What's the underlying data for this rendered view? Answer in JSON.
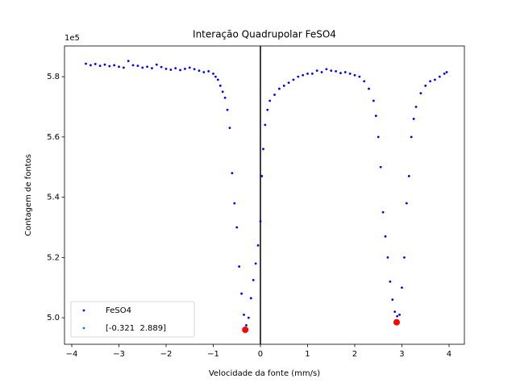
{
  "chart_data": {
    "type": "scatter",
    "title": "Interação Quadrupolar FeSO4",
    "xlabel": "Velocidade da fonte (mm/s)",
    "ylabel": "Contagem de fontos",
    "y_offset_label": "1e5",
    "xlim": [
      -4.154,
      4.325
    ],
    "ylim": [
      4.912,
      5.902
    ],
    "xticks": [
      {
        "value": -4,
        "label": "−4"
      },
      {
        "value": -3,
        "label": "−3"
      },
      {
        "value": -2,
        "label": "−2"
      },
      {
        "value": -1,
        "label": "−1"
      },
      0,
      1,
      2,
      3,
      4
    ],
    "yticks": [
      {
        "value": 5,
        "label": "5.0"
      },
      5.2,
      5.4,
      5.6,
      5.8
    ],
    "vline": 0,
    "legend": "lower left",
    "series": [
      {
        "name": "FeSO4",
        "color": "#0000ff",
        "marker_radius": 1.4,
        "x": [
          -3.7,
          -3.6,
          -3.5,
          -3.4,
          -3.3,
          -3.2,
          -3.1,
          -3.0,
          -2.9,
          -2.8,
          -2.7,
          -2.6,
          -2.5,
          -2.4,
          -2.3,
          -2.2,
          -2.1,
          -2.0,
          -1.9,
          -1.8,
          -1.7,
          -1.6,
          -1.5,
          -1.4,
          -1.3,
          -1.2,
          -1.1,
          -1.0,
          -0.95,
          -0.9,
          -0.85,
          -0.8,
          -0.75,
          -0.7,
          -0.65,
          -0.6,
          -0.55,
          -0.5,
          -0.45,
          -0.4,
          -0.35,
          -0.3,
          -0.25,
          -0.2,
          -0.15,
          -0.1,
          -0.05,
          0.0,
          0.03,
          0.06,
          0.1,
          0.15,
          0.2,
          0.3,
          0.4,
          0.5,
          0.6,
          0.7,
          0.8,
          0.9,
          1.0,
          1.1,
          1.2,
          1.3,
          1.4,
          1.5,
          1.6,
          1.7,
          1.8,
          1.9,
          2.0,
          2.1,
          2.2,
          2.3,
          2.4,
          2.45,
          2.5,
          2.55,
          2.6,
          2.65,
          2.7,
          2.75,
          2.8,
          2.85,
          2.9,
          2.95,
          3.0,
          3.05,
          3.1,
          3.15,
          3.2,
          3.25,
          3.3,
          3.4,
          3.5,
          3.6,
          3.7,
          3.8,
          3.9,
          3.95
        ],
        "values": [
          5.843,
          5.838,
          5.842,
          5.836,
          5.84,
          5.835,
          5.838,
          5.833,
          5.83,
          5.852,
          5.838,
          5.836,
          5.83,
          5.833,
          5.828,
          5.84,
          5.832,
          5.826,
          5.823,
          5.828,
          5.822,
          5.826,
          5.83,
          5.825,
          5.82,
          5.815,
          5.818,
          5.81,
          5.8,
          5.79,
          5.77,
          5.75,
          5.73,
          5.69,
          5.63,
          5.48,
          5.38,
          5.3,
          5.17,
          5.08,
          5.01,
          4.975,
          5.0,
          5.065,
          5.125,
          5.18,
          5.24,
          5.32,
          5.47,
          5.56,
          5.64,
          5.69,
          5.72,
          5.74,
          5.76,
          5.77,
          5.78,
          5.79,
          5.8,
          5.805,
          5.81,
          5.81,
          5.82,
          5.815,
          5.825,
          5.82,
          5.818,
          5.812,
          5.815,
          5.81,
          5.805,
          5.8,
          5.785,
          5.76,
          5.72,
          5.67,
          5.6,
          5.5,
          5.35,
          5.27,
          5.2,
          5.12,
          5.06,
          5.02,
          5.005,
          5.01,
          5.1,
          5.2,
          5.38,
          5.47,
          5.6,
          5.66,
          5.7,
          5.745,
          5.77,
          5.785,
          5.79,
          5.8,
          5.81,
          5.815
        ]
      },
      {
        "name": "[-0.321  2.889]",
        "color": "#1f77b4",
        "marker_radius": 1.4,
        "x": [],
        "values": []
      },
      {
        "color": "#ff0000",
        "marker_radius": 4,
        "x": [
          -0.321,
          2.889
        ],
        "values": [
          4.96,
          4.985
        ]
      }
    ]
  }
}
